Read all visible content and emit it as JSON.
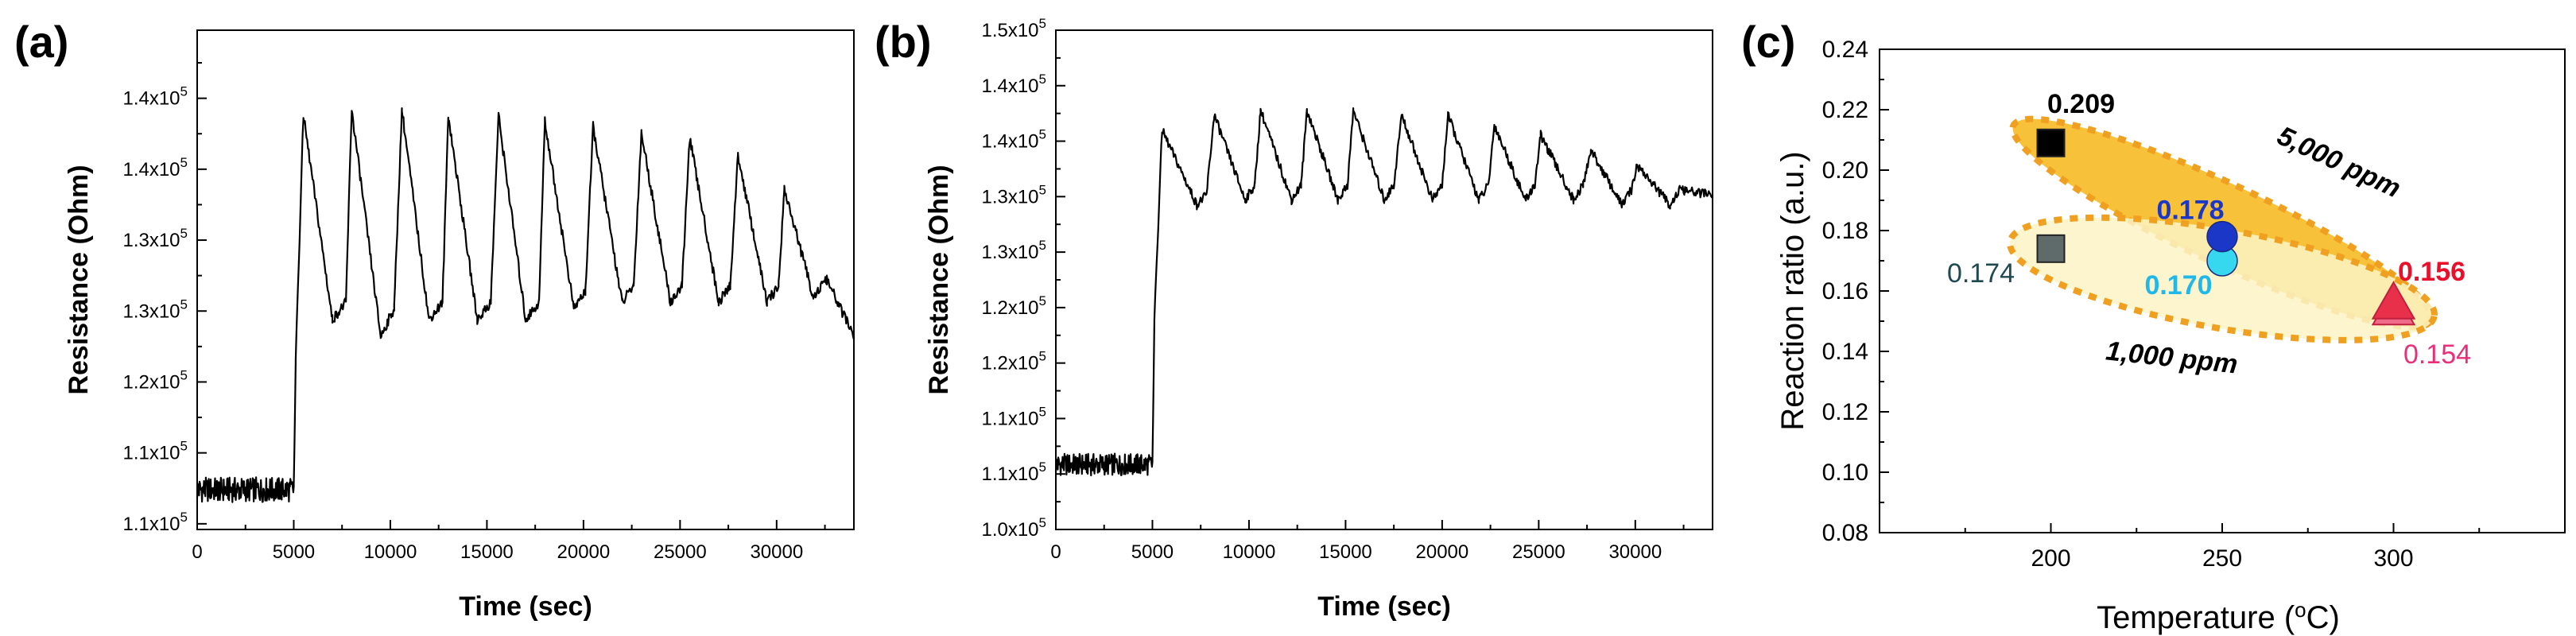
{
  "panels": [
    {
      "label": "(a)",
      "ylabel": "Resistance (Ohm)",
      "xlabel": "Time (sec)"
    },
    {
      "label": "(b)",
      "ylabel": "Resistance (Ohm)",
      "xlabel": "Time (sec)"
    },
    {
      "label": "(c)",
      "ylabel": "Reaction ratio (a.u.)",
      "xlabel": "Temperature (°C)"
    }
  ],
  "chart_data": [
    {
      "type": "line",
      "panel": "(a)",
      "xlabel": "Time (sec)",
      "ylabel": "Resistance (Ohm)",
      "xlim": [
        0,
        34000
      ],
      "ylim": [
        103000,
        147000
      ],
      "x_ticks": [
        "0",
        "5000",
        "10000",
        "15000",
        "20000",
        "25000",
        "30000"
      ],
      "y_ticks": [
        "1.1x10^5",
        "1.1x10^5",
        "1.2x10^5",
        "1.3x10^5",
        "1.3x10^5",
        "1.4x10^5",
        "1.4x10^5"
      ],
      "series": [
        {
          "baseline_value": 106500,
          "step_time": 5000,
          "x": [
            0,
            5000,
            5100,
            5500,
            7000,
            7700,
            8000,
            9500,
            10200,
            10600,
            12000,
            12700,
            13000,
            14500,
            15200,
            15600,
            17000,
            17700,
            18000,
            19500,
            20100,
            20500,
            22000,
            22600,
            23000,
            24500,
            25100,
            25500,
            27000,
            27600,
            28000,
            29500,
            30100,
            30400,
            31900,
            32600,
            34000
          ],
          "y": [
            106500,
            106500,
            118000,
            139500,
            121500,
            123000,
            140000,
            120000,
            122500,
            140000,
            121500,
            123000,
            139500,
            121500,
            123000,
            139500,
            121500,
            123000,
            139000,
            122500,
            124000,
            138500,
            123000,
            124500,
            138000,
            123000,
            124500,
            137500,
            123000,
            124500,
            136000,
            123000,
            124500,
            133000,
            123500,
            125000,
            120000
          ]
        }
      ]
    },
    {
      "type": "line",
      "panel": "(b)",
      "xlabel": "Time (sec)",
      "ylabel": "Resistance (Ohm)",
      "xlim": [
        0,
        34000
      ],
      "ylim": [
        100000,
        150000
      ],
      "x_ticks": [
        "0",
        "5000",
        "10000",
        "15000",
        "20000",
        "25000",
        "30000"
      ],
      "y_ticks": [
        "1.0x10^5",
        "1.1x10^5",
        "1.1x10^5",
        "1.2x10^5",
        "1.2x10^5",
        "1.3x10^5",
        "1.3x10^5",
        "1.4x10^5",
        "1.4x10^5",
        "1.5x10^5"
      ],
      "series": [
        {
          "baseline_value": 106500,
          "step_time": 5000,
          "x": [
            0,
            5000,
            5100,
            5500,
            7300,
            7800,
            8200,
            9800,
            10300,
            10600,
            12200,
            12700,
            13000,
            14600,
            15100,
            15400,
            17000,
            17500,
            17900,
            19500,
            20000,
            20300,
            21900,
            22400,
            22700,
            24300,
            24800,
            25100,
            26800,
            27300,
            27700,
            29300,
            29800,
            30100,
            31800,
            32300,
            34000
          ],
          "y": [
            106500,
            106500,
            121000,
            140000,
            132500,
            133500,
            141500,
            133000,
            134500,
            142000,
            133000,
            134500,
            142000,
            133000,
            134500,
            142000,
            133000,
            134500,
            141500,
            133000,
            134500,
            141500,
            133000,
            134500,
            140500,
            133000,
            134500,
            139500,
            133000,
            134500,
            138000,
            132500,
            134000,
            136500,
            132500,
            134000,
            133500
          ]
        }
      ]
    },
    {
      "type": "scatter",
      "panel": "(c)",
      "xlabel": "Temperature (°C)",
      "ylabel": "Reaction ratio (a.u.)",
      "xlim": [
        150,
        350
      ],
      "ylim": [
        0.08,
        0.24
      ],
      "x_ticks": [
        "200",
        "250",
        "300"
      ],
      "y_ticks": [
        "0.08",
        "0.10",
        "0.12",
        "0.14",
        "0.16",
        "0.18",
        "0.20",
        "0.22",
        "0.24"
      ],
      "groups": [
        {
          "name": "5,000 ppm",
          "points": [
            {
              "x": 200,
              "y": 0.209,
              "label": "0.209",
              "marker": "square",
              "color": "#000000",
              "label_color": "#000000"
            },
            {
              "x": 250,
              "y": 0.178,
              "label": "0.178",
              "marker": "circle",
              "color": "#1a37c8",
              "label_color": "#1a37c8"
            },
            {
              "x": 300,
              "y": 0.156,
              "label": "0.156",
              "marker": "triangle",
              "color": "#e8304a",
              "label_color": "#e8102a"
            }
          ]
        },
        {
          "name": "1,000 ppm",
          "points": [
            {
              "x": 200,
              "y": 0.174,
              "label": "0.174",
              "marker": "square",
              "color": "#5f6b6b",
              "label_color": "#204a50"
            },
            {
              "x": 250,
              "y": 0.17,
              "label": "0.170",
              "marker": "circle",
              "color": "#35d8ee",
              "label_color": "#20b8e8"
            },
            {
              "x": 300,
              "y": 0.154,
              "label": "0.154",
              "marker": "triangle",
              "color": "#f06a8a",
              "label_color": "#e8307a"
            }
          ]
        }
      ]
    }
  ]
}
